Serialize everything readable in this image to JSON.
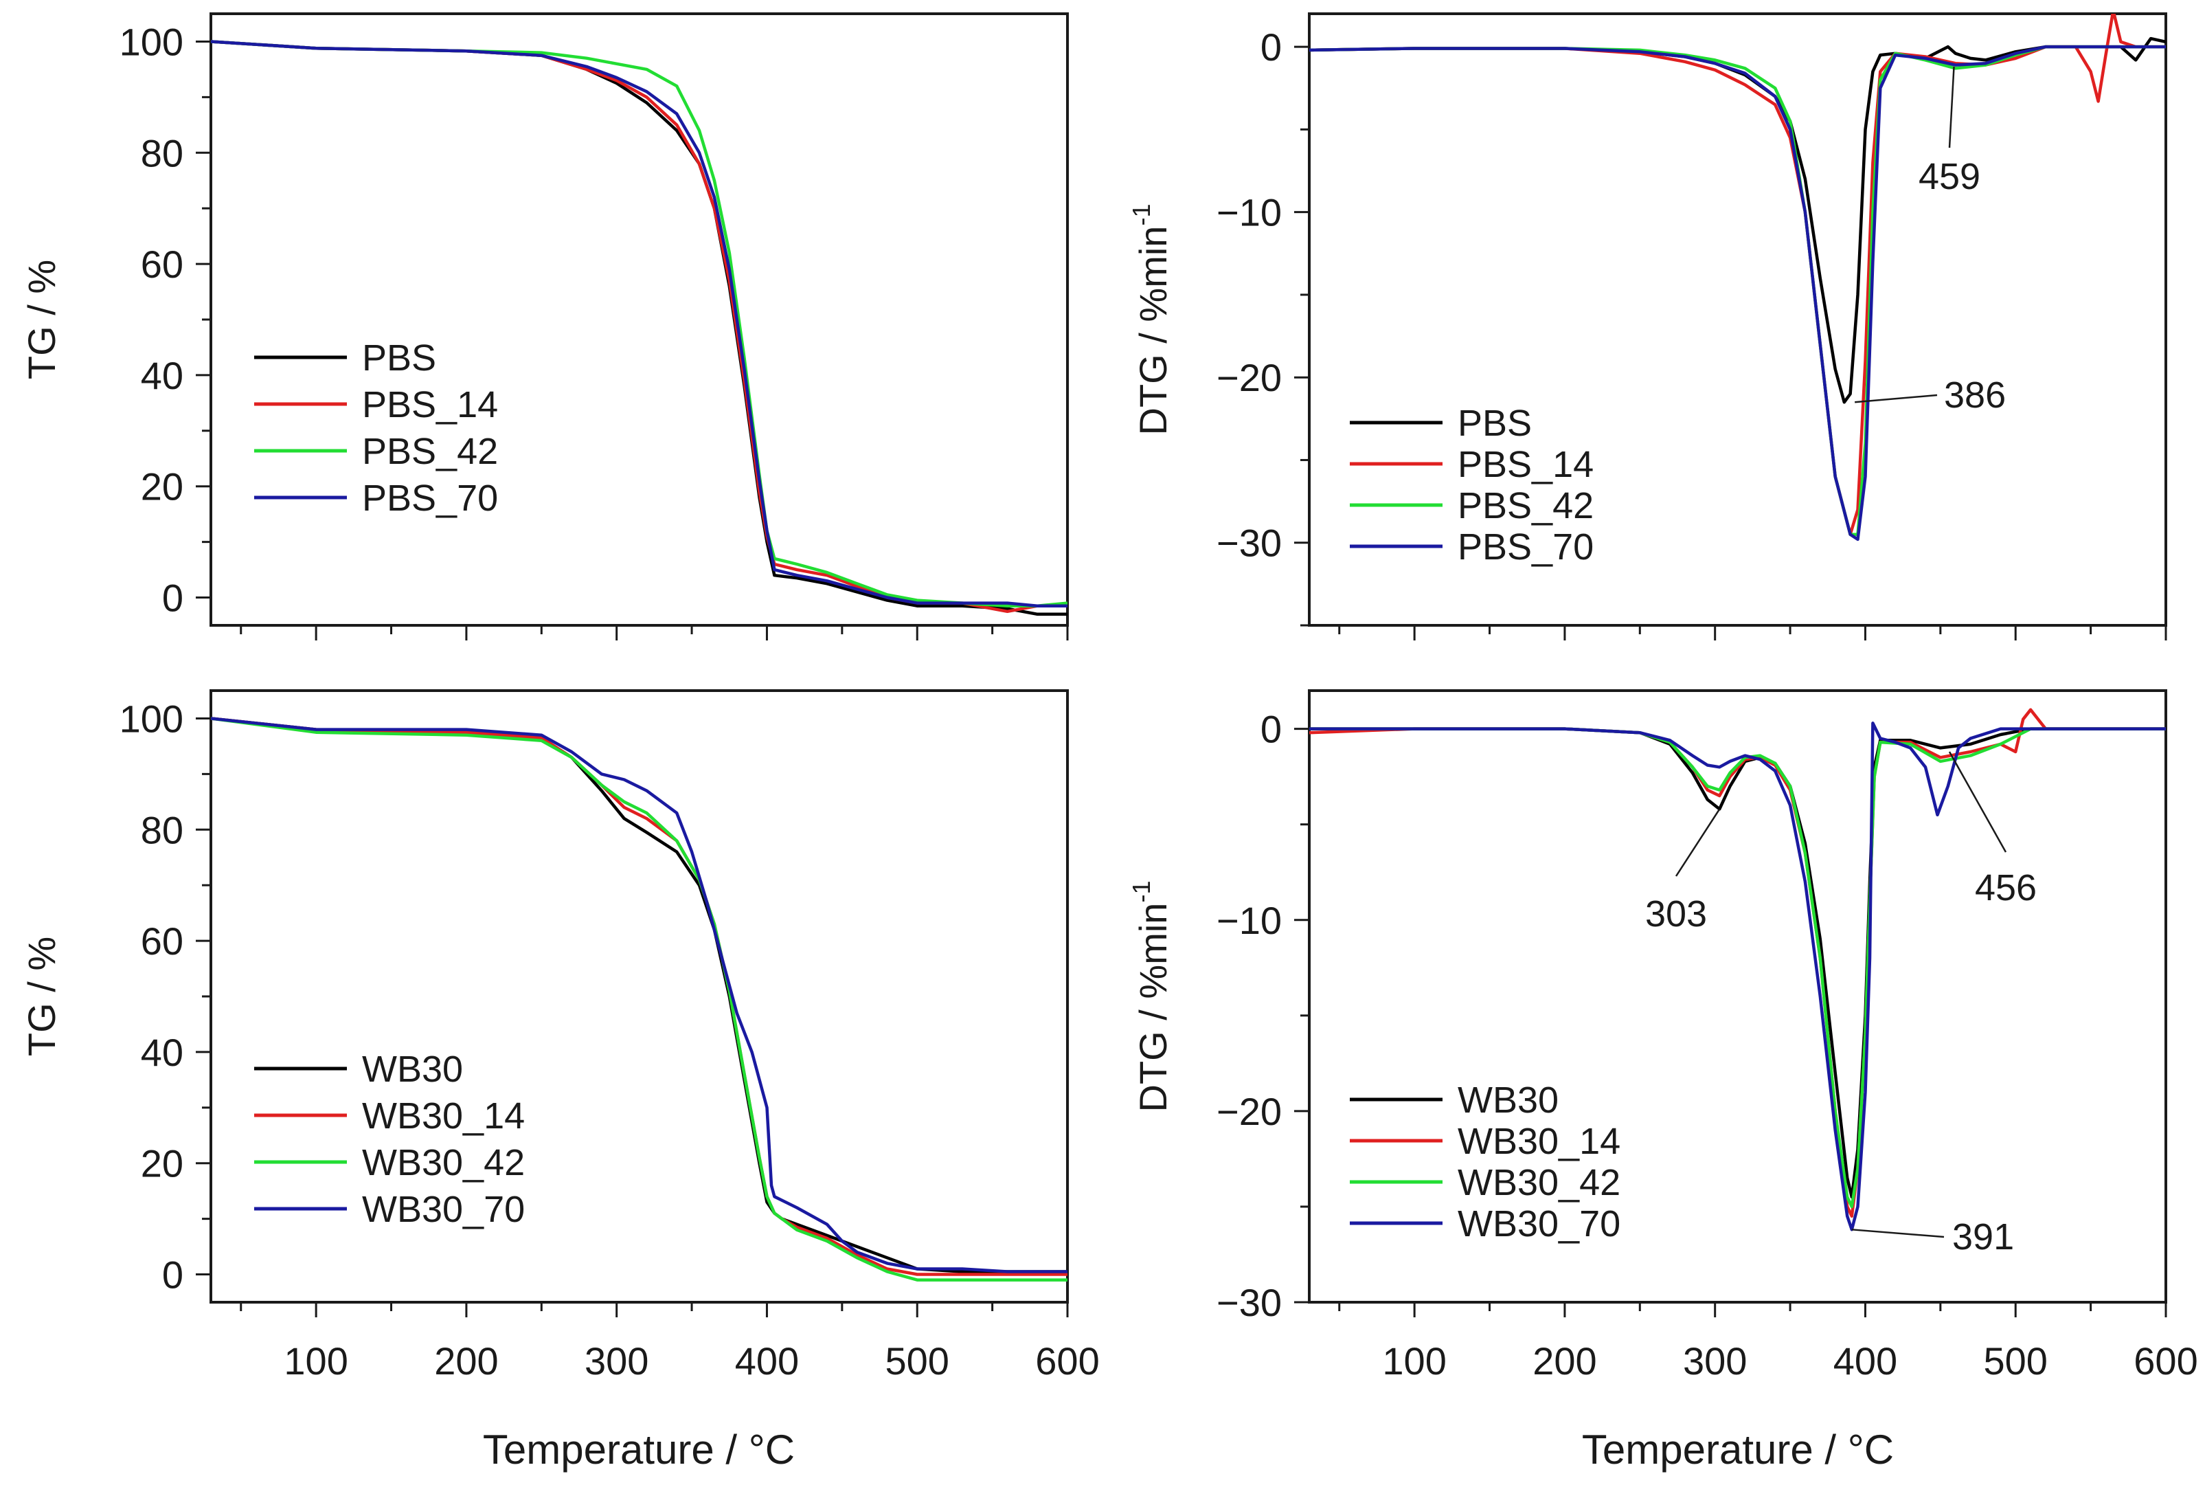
{
  "figure": {
    "x_axis_label": "Temperature / °C"
  },
  "chart_data": [
    {
      "id": "tg_pbs",
      "type": "line",
      "title": "",
      "xlabel": "",
      "ylabel": "TG / %",
      "xlim": [
        30,
        600
      ],
      "ylim": [
        -5,
        105
      ],
      "xticks": [
        100,
        200,
        300,
        400,
        500,
        600
      ],
      "yticks": [
        0,
        20,
        40,
        60,
        80,
        100
      ],
      "show_x_tick_labels": false,
      "legend_position": "center-left",
      "annotations": [],
      "series": [
        {
          "name": "PBS",
          "color": "#000000",
          "x": [
            30,
            100,
            200,
            250,
            280,
            300,
            320,
            340,
            355,
            365,
            375,
            385,
            395,
            400,
            405,
            420,
            440,
            460,
            480,
            500,
            530,
            560,
            580,
            600
          ],
          "y": [
            100,
            98.8,
            98.3,
            97.5,
            95,
            92.5,
            89,
            84,
            78,
            70,
            56,
            38,
            18,
            10,
            4,
            3.5,
            2.5,
            1,
            -0.5,
            -1.5,
            -1.5,
            -2,
            -3,
            -3
          ]
        },
        {
          "name": "PBS_14",
          "color": "#e02020",
          "x": [
            30,
            100,
            200,
            250,
            280,
            300,
            320,
            340,
            355,
            365,
            375,
            385,
            395,
            400,
            405,
            420,
            440,
            460,
            480,
            500,
            530,
            560,
            580,
            600
          ],
          "y": [
            100,
            98.8,
            98.3,
            97.5,
            95,
            93,
            90,
            85,
            78,
            70,
            57,
            39,
            19,
            11,
            6,
            5,
            4,
            2,
            0,
            -1,
            -1,
            -2.5,
            -1.5,
            -1.5
          ]
        },
        {
          "name": "PBS_42",
          "color": "#22dd33",
          "x": [
            30,
            100,
            200,
            250,
            280,
            300,
            320,
            340,
            355,
            365,
            375,
            385,
            395,
            400,
            405,
            420,
            440,
            460,
            480,
            500,
            530,
            560,
            580,
            600
          ],
          "y": [
            100,
            98.8,
            98.3,
            98,
            97,
            96,
            95,
            92,
            84,
            75,
            62,
            43,
            22,
            12,
            7,
            6,
            4.5,
            2.5,
            0.5,
            -0.5,
            -1,
            -1.5,
            -1.5,
            -1
          ]
        },
        {
          "name": "PBS_70",
          "color": "#1a1aa0",
          "x": [
            30,
            100,
            200,
            250,
            280,
            300,
            320,
            340,
            355,
            365,
            375,
            385,
            395,
            400,
            405,
            420,
            440,
            460,
            480,
            500,
            530,
            560,
            580,
            600
          ],
          "y": [
            100,
            98.8,
            98.3,
            97.5,
            95.5,
            93.5,
            91,
            87,
            80,
            72,
            59,
            41,
            21,
            12,
            5,
            4,
            3,
            1.5,
            0,
            -1,
            -1,
            -1,
            -1.5,
            -1.5
          ]
        }
      ]
    },
    {
      "id": "dtg_pbs",
      "type": "line",
      "title": "",
      "xlabel": "",
      "ylabel": "DTG / %min",
      "ylabel_superscript": "-1",
      "xlim": [
        30,
        600
      ],
      "ylim": [
        -35,
        2
      ],
      "xticks": [
        100,
        200,
        300,
        400,
        500,
        600
      ],
      "yticks": [
        0,
        -10,
        -20,
        -30
      ],
      "show_x_tick_labels": false,
      "legend_position": "lower-left",
      "annotations": [
        {
          "text": "386",
          "x": 393,
          "y": -21.5
        },
        {
          "text": "459",
          "x": 459,
          "y": -1.2
        }
      ],
      "series": [
        {
          "name": "PBS",
          "color": "#000000",
          "x": [
            30,
            100,
            200,
            250,
            280,
            300,
            320,
            340,
            350,
            360,
            370,
            380,
            386,
            390,
            395,
            400,
            405,
            410,
            420,
            440,
            455,
            460,
            470,
            480,
            500,
            520,
            550,
            570,
            580,
            590,
            600
          ],
          "y": [
            -0.2,
            -0.1,
            -0.1,
            -0.3,
            -0.6,
            -1,
            -1.7,
            -3,
            -4.5,
            -8,
            -14,
            -19.5,
            -21.5,
            -21,
            -15,
            -5,
            -1.5,
            -0.5,
            -0.4,
            -0.7,
            0,
            -0.4,
            -0.7,
            -0.8,
            -0.3,
            0,
            0,
            0,
            -0.8,
            0.5,
            0.3
          ]
        },
        {
          "name": "PBS_14",
          "color": "#e02020",
          "x": [
            30,
            100,
            200,
            250,
            280,
            300,
            320,
            340,
            350,
            360,
            370,
            380,
            390,
            395,
            400,
            405,
            410,
            420,
            440,
            460,
            480,
            500,
            520,
            540,
            550,
            555,
            560,
            565,
            570,
            580,
            600
          ],
          "y": [
            -0.2,
            -0.1,
            -0.1,
            -0.4,
            -0.9,
            -1.4,
            -2.3,
            -3.5,
            -5.5,
            -10,
            -18,
            -26,
            -29.5,
            -28,
            -19,
            -7,
            -1.5,
            -0.4,
            -0.6,
            -1,
            -1.1,
            -0.7,
            0,
            0,
            -1.5,
            -3.3,
            -0.5,
            2.2,
            0.3,
            0,
            0
          ]
        },
        {
          "name": "PBS_42",
          "color": "#22dd33",
          "x": [
            30,
            100,
            200,
            250,
            280,
            300,
            320,
            340,
            350,
            360,
            370,
            380,
            390,
            395,
            400,
            405,
            410,
            420,
            440,
            460,
            480,
            500,
            520,
            600
          ],
          "y": [
            -0.2,
            -0.1,
            -0.1,
            -0.2,
            -0.5,
            -0.8,
            -1.3,
            -2.5,
            -4.5,
            -10,
            -18,
            -26,
            -29.5,
            -29.5,
            -24,
            -10,
            -2,
            -0.4,
            -0.8,
            -1.3,
            -1.1,
            -0.5,
            0,
            0
          ]
        },
        {
          "name": "PBS_70",
          "color": "#1a1aa0",
          "x": [
            30,
            100,
            200,
            250,
            280,
            300,
            320,
            340,
            350,
            360,
            370,
            380,
            390,
            395,
            400,
            405,
            410,
            420,
            440,
            460,
            480,
            500,
            520,
            600
          ],
          "y": [
            -0.2,
            -0.1,
            -0.1,
            -0.3,
            -0.6,
            -1,
            -1.6,
            -3,
            -5,
            -10,
            -18,
            -26,
            -29.5,
            -29.8,
            -26,
            -13,
            -2.5,
            -0.5,
            -0.7,
            -1.1,
            -1,
            -0.4,
            0,
            0
          ]
        }
      ]
    },
    {
      "id": "tg_wb30",
      "type": "line",
      "title": "",
      "xlabel": "Temperature / °C",
      "ylabel": "TG / %",
      "xlim": [
        30,
        600
      ],
      "ylim": [
        -5,
        105
      ],
      "xticks": [
        100,
        200,
        300,
        400,
        500,
        600
      ],
      "yticks": [
        0,
        20,
        40,
        60,
        80,
        100
      ],
      "show_x_tick_labels": true,
      "legend_position": "lower-left",
      "annotations": [],
      "series": [
        {
          "name": "WB30",
          "color": "#000000",
          "x": [
            30,
            100,
            200,
            250,
            270,
            290,
            305,
            320,
            340,
            355,
            365,
            375,
            385,
            395,
            400,
            405,
            410,
            420,
            440,
            460,
            480,
            500,
            530,
            560,
            600
          ],
          "y": [
            100,
            98,
            97.5,
            96.5,
            93,
            87,
            82,
            79.5,
            76,
            70,
            62,
            50,
            35,
            20,
            13,
            11,
            10,
            9,
            7,
            5,
            3,
            1,
            0.5,
            0.5,
            0.5
          ]
        },
        {
          "name": "WB30_14",
          "color": "#e02020",
          "x": [
            30,
            100,
            200,
            250,
            270,
            290,
            305,
            320,
            340,
            355,
            365,
            375,
            385,
            395,
            400,
            405,
            410,
            420,
            440,
            460,
            480,
            500,
            530,
            560,
            600
          ],
          "y": [
            100,
            98,
            97.5,
            96.5,
            93,
            88,
            84,
            82,
            78,
            71,
            63,
            51,
            36,
            21,
            14,
            11,
            10,
            8.5,
            6.5,
            3.5,
            1,
            0,
            0,
            0,
            0
          ]
        },
        {
          "name": "WB30_42",
          "color": "#22dd33",
          "x": [
            30,
            100,
            200,
            250,
            270,
            290,
            305,
            320,
            340,
            355,
            365,
            375,
            385,
            395,
            400,
            405,
            410,
            420,
            440,
            460,
            480,
            500,
            530,
            560,
            600
          ],
          "y": [
            100,
            97.5,
            97,
            96,
            93,
            88,
            85,
            83,
            78,
            71,
            63,
            51,
            36,
            21,
            14,
            11,
            10,
            8,
            6,
            3,
            0.5,
            -1,
            -1,
            -1,
            -1
          ]
        },
        {
          "name": "WB30_70",
          "color": "#1a1aa0",
          "x": [
            30,
            100,
            200,
            250,
            270,
            290,
            305,
            320,
            340,
            350,
            360,
            370,
            380,
            390,
            400,
            403,
            405,
            420,
            440,
            450,
            460,
            480,
            500,
            530,
            560,
            600
          ],
          "y": [
            100,
            98,
            98,
            97,
            94,
            90,
            89,
            87,
            83,
            76,
            67,
            57,
            47,
            40,
            30,
            16,
            14,
            12,
            9,
            6,
            4,
            2,
            1,
            1,
            0.5,
            0.5
          ]
        }
      ]
    },
    {
      "id": "dtg_wb30",
      "type": "line",
      "title": "",
      "xlabel": "Temperature / °C",
      "ylabel": "DTG / %min",
      "ylabel_superscript": "-1",
      "xlim": [
        30,
        600
      ],
      "ylim": [
        -30,
        2
      ],
      "xticks": [
        100,
        200,
        300,
        400,
        500,
        600
      ],
      "yticks": [
        0,
        -10,
        -20,
        -30
      ],
      "show_x_tick_labels": true,
      "legend_position": "lower-left",
      "annotations": [
        {
          "text": "303",
          "x": 303,
          "y": -4.2
        },
        {
          "text": "391",
          "x": 391,
          "y": -26.2
        },
        {
          "text": "456",
          "x": 456,
          "y": -1.2
        }
      ],
      "series": [
        {
          "name": "WB30",
          "color": "#000000",
          "x": [
            30,
            100,
            200,
            250,
            270,
            285,
            295,
            303,
            310,
            320,
            330,
            340,
            350,
            360,
            370,
            380,
            388,
            391,
            395,
            400,
            403,
            406,
            410,
            430,
            450,
            470,
            490,
            510,
            530,
            560,
            600
          ],
          "y": [
            0,
            0,
            0,
            -0.2,
            -0.8,
            -2.3,
            -3.7,
            -4.2,
            -3,
            -1.7,
            -1.5,
            -1.8,
            -3,
            -6,
            -11,
            -18,
            -23.5,
            -24.5,
            -22,
            -15,
            -8,
            -2,
            -0.6,
            -0.6,
            -1,
            -0.8,
            -0.3,
            0,
            0,
            0,
            0
          ]
        },
        {
          "name": "WB30_14",
          "color": "#e02020",
          "x": [
            30,
            100,
            200,
            250,
            270,
            285,
            295,
            303,
            310,
            320,
            330,
            340,
            350,
            360,
            370,
            380,
            388,
            391,
            395,
            400,
            403,
            406,
            410,
            430,
            450,
            470,
            490,
            500,
            505,
            510,
            520,
            540,
            560,
            600
          ],
          "y": [
            -0.2,
            0,
            0,
            -0.2,
            -0.7,
            -2,
            -3.2,
            -3.5,
            -2.5,
            -1.6,
            -1.5,
            -1.9,
            -3.2,
            -6.5,
            -12,
            -20,
            -25,
            -25.5,
            -23,
            -16,
            -9,
            -2.5,
            -0.7,
            -0.7,
            -1.5,
            -1.2,
            -0.8,
            -1.2,
            0.5,
            1,
            0,
            0,
            0,
            0
          ]
        },
        {
          "name": "WB30_42",
          "color": "#22dd33",
          "x": [
            30,
            100,
            200,
            250,
            270,
            285,
            295,
            303,
            310,
            320,
            330,
            340,
            350,
            360,
            370,
            380,
            388,
            391,
            395,
            400,
            403,
            406,
            410,
            430,
            450,
            470,
            490,
            510,
            530,
            560,
            600
          ],
          "y": [
            0,
            0,
            0,
            -0.2,
            -0.7,
            -2,
            -3,
            -3.2,
            -2.3,
            -1.5,
            -1.4,
            -1.8,
            -3,
            -6.5,
            -12,
            -20,
            -24.5,
            -25,
            -23,
            -16,
            -9,
            -2.5,
            -0.7,
            -0.8,
            -1.7,
            -1.4,
            -0.8,
            0,
            0,
            0,
            0
          ]
        },
        {
          "name": "WB30_70",
          "color": "#1a1aa0",
          "x": [
            30,
            100,
            200,
            250,
            270,
            285,
            295,
            303,
            310,
            320,
            330,
            340,
            350,
            360,
            370,
            380,
            388,
            391,
            395,
            400,
            403,
            405,
            410,
            420,
            430,
            440,
            448,
            455,
            462,
            470,
            490,
            510,
            530,
            560,
            600
          ],
          "y": [
            0,
            0,
            0,
            -0.2,
            -0.6,
            -1.4,
            -1.9,
            -2,
            -1.7,
            -1.4,
            -1.6,
            -2.2,
            -4,
            -8,
            -14,
            -21,
            -25.5,
            -26.2,
            -25,
            -19,
            -12,
            0.3,
            -0.5,
            -0.7,
            -1,
            -2,
            -4.5,
            -3,
            -1,
            -0.5,
            0,
            0,
            0,
            0,
            0
          ]
        }
      ]
    }
  ]
}
